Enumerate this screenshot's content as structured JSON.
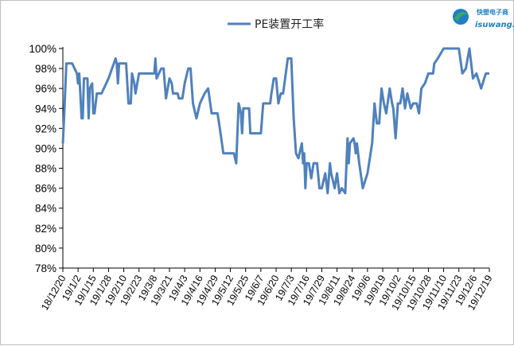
{
  "chart_data": {
    "type": "line",
    "title": "",
    "xlabel": "",
    "ylabel": "",
    "ylim": [
      0.78,
      1.0
    ],
    "y_ticks": [
      "100%",
      "98%",
      "96%",
      "94%",
      "92%",
      "90%",
      "88%",
      "86%",
      "84%",
      "82%",
      "80%",
      "78%"
    ],
    "x_tick_labels": [
      "18/12/20",
      "19/1/2",
      "19/1/15",
      "19/1/28",
      "19/2/10",
      "19/2/23",
      "19/3/8",
      "19/3/21",
      "19/4/3",
      "19/4/16",
      "19/4/29",
      "19/5/12",
      "19/5/25",
      "19/6/7",
      "19/6/20",
      "19/7/3",
      "19/7/16",
      "19/7/29",
      "19/8/11",
      "19/8/24",
      "19/9/6",
      "19/9/19",
      "19/10/2",
      "19/10/15",
      "19/10/28",
      "19/11/10",
      "19/11/23",
      "19/12/6",
      "19/12/19"
    ],
    "x_range": [
      "2018-12-20",
      "2019-12-19"
    ],
    "legend_position": "top-center",
    "grid": false,
    "series": [
      {
        "name": "PE装置开工率",
        "color": "#4f81bd",
        "points": [
          [
            "2018-12-20",
            0.905
          ],
          [
            "2018-12-21",
            0.93
          ],
          [
            "2018-12-23",
            0.985
          ],
          [
            "2018-12-25",
            0.985
          ],
          [
            "2018-12-28",
            0.985
          ],
          [
            "2018-12-30",
            0.98
          ],
          [
            "2019-01-01",
            0.975
          ],
          [
            "2019-01-02",
            0.965
          ],
          [
            "2019-01-03",
            0.975
          ],
          [
            "2019-01-05",
            0.93
          ],
          [
            "2019-01-06",
            0.93
          ],
          [
            "2019-01-07",
            0.97
          ],
          [
            "2019-01-10",
            0.97
          ],
          [
            "2019-01-11",
            0.93
          ],
          [
            "2019-01-12",
            0.96
          ],
          [
            "2019-01-14",
            0.965
          ],
          [
            "2019-01-15",
            0.935
          ],
          [
            "2019-01-16",
            0.935
          ],
          [
            "2019-01-18",
            0.955
          ],
          [
            "2019-01-22",
            0.955
          ],
          [
            "2019-01-24",
            0.96
          ],
          [
            "2019-01-28",
            0.97
          ],
          [
            "2019-02-03",
            0.99
          ],
          [
            "2019-02-04",
            0.985
          ],
          [
            "2019-02-05",
            0.965
          ],
          [
            "2019-02-06",
            0.985
          ],
          [
            "2019-02-10",
            0.985
          ],
          [
            "2019-02-12",
            0.985
          ],
          [
            "2019-02-14",
            0.945
          ],
          [
            "2019-02-16",
            0.945
          ],
          [
            "2019-02-17",
            0.975
          ],
          [
            "2019-02-19",
            0.965
          ],
          [
            "2019-02-20",
            0.955
          ],
          [
            "2019-02-23",
            0.975
          ],
          [
            "2019-03-01",
            0.975
          ],
          [
            "2019-03-08",
            0.975
          ],
          [
            "2019-03-09",
            0.99
          ],
          [
            "2019-03-10",
            0.97
          ],
          [
            "2019-03-12",
            0.975
          ],
          [
            "2019-03-14",
            0.98
          ],
          [
            "2019-03-16",
            0.98
          ],
          [
            "2019-03-18",
            0.95
          ],
          [
            "2019-03-21",
            0.97
          ],
          [
            "2019-03-23",
            0.965
          ],
          [
            "2019-03-24",
            0.955
          ],
          [
            "2019-03-28",
            0.955
          ],
          [
            "2019-03-29",
            0.95
          ],
          [
            "2019-04-01",
            0.95
          ],
          [
            "2019-04-03",
            0.965
          ],
          [
            "2019-04-06",
            0.98
          ],
          [
            "2019-04-08",
            0.98
          ],
          [
            "2019-04-10",
            0.945
          ],
          [
            "2019-04-13",
            0.93
          ],
          [
            "2019-04-16",
            0.945
          ],
          [
            "2019-04-20",
            0.955
          ],
          [
            "2019-04-23",
            0.96
          ],
          [
            "2019-04-26",
            0.935
          ],
          [
            "2019-05-01",
            0.935
          ],
          [
            "2019-05-03",
            0.92
          ],
          [
            "2019-05-06",
            0.895
          ],
          [
            "2019-05-15",
            0.895
          ],
          [
            "2019-05-17",
            0.885
          ],
          [
            "2019-05-19",
            0.945
          ],
          [
            "2019-05-21",
            0.935
          ],
          [
            "2019-05-22",
            0.915
          ],
          [
            "2019-05-23",
            0.94
          ],
          [
            "2019-05-28",
            0.94
          ],
          [
            "2019-05-29",
            0.915
          ],
          [
            "2019-06-07",
            0.915
          ],
          [
            "2019-06-09",
            0.945
          ],
          [
            "2019-06-15",
            0.945
          ],
          [
            "2019-06-16",
            0.955
          ],
          [
            "2019-06-18",
            0.97
          ],
          [
            "2019-06-20",
            0.97
          ],
          [
            "2019-06-22",
            0.945
          ],
          [
            "2019-06-24",
            0.955
          ],
          [
            "2019-06-26",
            0.955
          ],
          [
            "2019-06-30",
            0.99
          ],
          [
            "2019-07-03",
            0.99
          ],
          [
            "2019-07-05",
            0.93
          ],
          [
            "2019-07-07",
            0.895
          ],
          [
            "2019-07-09",
            0.89
          ],
          [
            "2019-07-12",
            0.905
          ],
          [
            "2019-07-13",
            0.885
          ],
          [
            "2019-07-14",
            0.895
          ],
          [
            "2019-07-15",
            0.86
          ],
          [
            "2019-07-16",
            0.885
          ],
          [
            "2019-07-18",
            0.885
          ],
          [
            "2019-07-20",
            0.87
          ],
          [
            "2019-07-22",
            0.885
          ],
          [
            "2019-07-25",
            0.885
          ],
          [
            "2019-07-27",
            0.86
          ],
          [
            "2019-07-29",
            0.86
          ],
          [
            "2019-08-01",
            0.875
          ],
          [
            "2019-08-03",
            0.855
          ],
          [
            "2019-08-05",
            0.885
          ],
          [
            "2019-08-06",
            0.875
          ],
          [
            "2019-08-08",
            0.865
          ],
          [
            "2019-08-09",
            0.86
          ],
          [
            "2019-08-11",
            0.875
          ],
          [
            "2019-08-13",
            0.855
          ],
          [
            "2019-08-15",
            0.86
          ],
          [
            "2019-08-18",
            0.855
          ],
          [
            "2019-08-20",
            0.91
          ],
          [
            "2019-08-21",
            0.885
          ],
          [
            "2019-08-22",
            0.905
          ],
          [
            "2019-08-25",
            0.91
          ],
          [
            "2019-08-26",
            0.905
          ],
          [
            "2019-08-27",
            0.895
          ],
          [
            "2019-08-28",
            0.905
          ],
          [
            "2019-08-30",
            0.885
          ],
          [
            "2019-09-02",
            0.86
          ],
          [
            "2019-09-06",
            0.875
          ],
          [
            "2019-09-10",
            0.905
          ],
          [
            "2019-09-12",
            0.945
          ],
          [
            "2019-09-14",
            0.925
          ],
          [
            "2019-09-16",
            0.925
          ],
          [
            "2019-09-18",
            0.96
          ],
          [
            "2019-09-20",
            0.945
          ],
          [
            "2019-09-22",
            0.935
          ],
          [
            "2019-09-25",
            0.96
          ],
          [
            "2019-09-27",
            0.945
          ],
          [
            "2019-09-28",
            0.94
          ],
          [
            "2019-09-30",
            0.91
          ],
          [
            "2019-10-02",
            0.945
          ],
          [
            "2019-10-04",
            0.945
          ],
          [
            "2019-10-06",
            0.96
          ],
          [
            "2019-10-08",
            0.94
          ],
          [
            "2019-10-10",
            0.955
          ],
          [
            "2019-10-13",
            0.94
          ],
          [
            "2019-10-15",
            0.945
          ],
          [
            "2019-10-18",
            0.945
          ],
          [
            "2019-10-20",
            0.935
          ],
          [
            "2019-10-22",
            0.96
          ],
          [
            "2019-10-25",
            0.965
          ],
          [
            "2019-10-28",
            0.975
          ],
          [
            "2019-11-01",
            0.975
          ],
          [
            "2019-11-02",
            0.985
          ],
          [
            "2019-11-05",
            0.99
          ],
          [
            "2019-11-10",
            1.0
          ],
          [
            "2019-11-20",
            1.0
          ],
          [
            "2019-11-23",
            1.0
          ],
          [
            "2019-11-26",
            0.975
          ],
          [
            "2019-11-29",
            0.98
          ],
          [
            "2019-12-02",
            1.0
          ],
          [
            "2019-12-05",
            0.97
          ],
          [
            "2019-12-08",
            0.975
          ],
          [
            "2019-12-12",
            0.96
          ],
          [
            "2019-12-16",
            0.975
          ],
          [
            "2019-12-19",
            0.975
          ]
        ]
      }
    ]
  },
  "logo": {
    "cn": "快塑电子商",
    "en": "isuwang.co"
  },
  "colors": {
    "line": "#4f81bd",
    "axis": "#000000",
    "logo_blue": "#1e7fc4",
    "logo_green": "#3aa86a"
  }
}
